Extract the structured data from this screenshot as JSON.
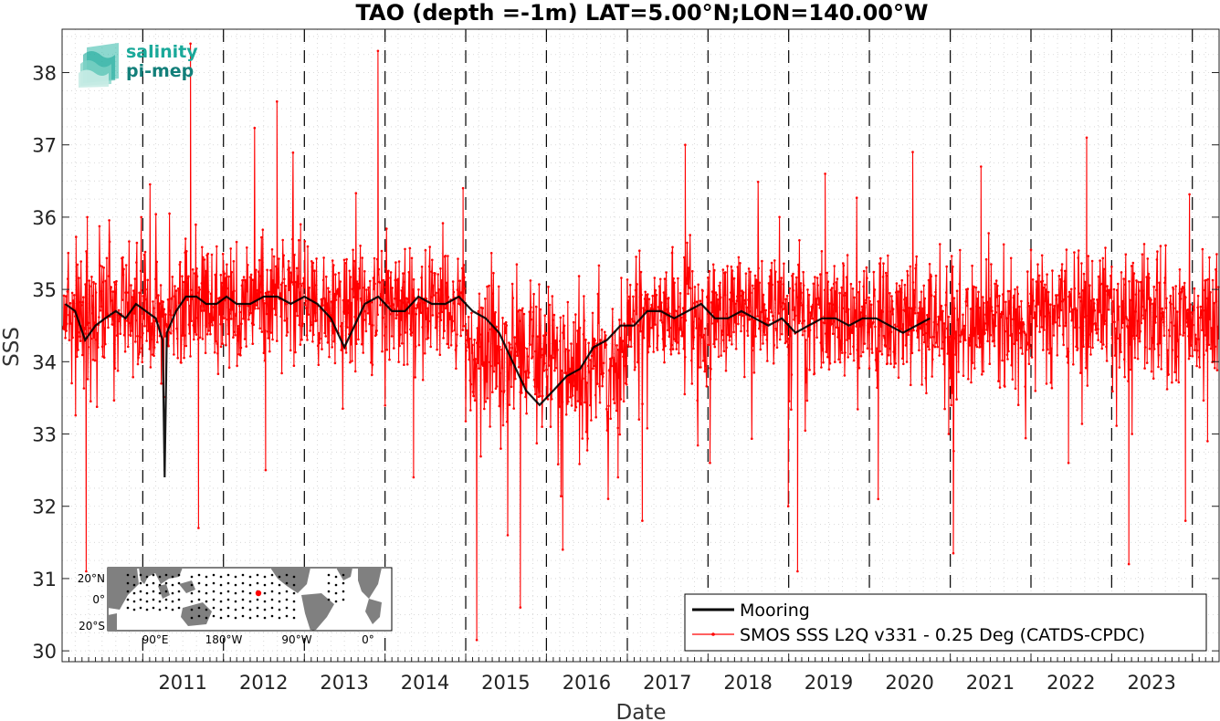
{
  "logo": {
    "line1": "salinity",
    "line2": "pi-mep",
    "color1": "#1aa99a",
    "color2": "#137f7a"
  },
  "colors": {
    "mooring": "#000000",
    "smos": "#ff0000",
    "year_line": "#000000",
    "grid": "#cccccc",
    "map_land": "#808080",
    "map_ocean": "#ffffff",
    "station_highlight": "#ff0000"
  },
  "chart_data": {
    "type": "line",
    "title": "TAO (depth =-1m) LAT=5.00°N;LON=140.00°W",
    "xlabel": "Date",
    "ylabel": "SSS",
    "xlim": [
      "2010-01-01",
      "2024-05-01"
    ],
    "ylim": [
      29.85,
      38.6
    ],
    "yticks": [
      30,
      31,
      32,
      33,
      34,
      35,
      36,
      37,
      38
    ],
    "xticks": [
      "2011",
      "2012",
      "2013",
      "2014",
      "2015",
      "2016",
      "2017",
      "2018",
      "2019",
      "2020",
      "2021",
      "2022",
      "2023"
    ],
    "year_lines": [
      "2011-01-01",
      "2012-01-01",
      "2013-01-01",
      "2014-01-01",
      "2015-01-01",
      "2016-01-01",
      "2017-01-01",
      "2018-01-01",
      "2019-01-01",
      "2020-01-01",
      "2021-01-01",
      "2022-01-01",
      "2023-01-01",
      "2024-01-01"
    ],
    "grid": "dotted",
    "legend_position": "bottom-right",
    "series": [
      {
        "name": "Mooring",
        "style": "line",
        "points": [
          [
            "2010-01-15",
            34.8
          ],
          [
            "2010-03-01",
            34.7
          ],
          [
            "2010-04-15",
            34.3
          ],
          [
            "2010-06-01",
            34.5
          ],
          [
            "2010-07-15",
            34.6
          ],
          [
            "2010-09-01",
            34.7
          ],
          [
            "2010-10-15",
            34.6
          ],
          [
            "2010-12-01",
            34.8
          ],
          [
            "2011-01-15",
            34.7
          ],
          [
            "2011-03-01",
            34.6
          ],
          [
            "2011-04-01",
            34.3
          ],
          [
            "2011-04-10",
            32.4
          ],
          [
            "2011-04-20",
            34.4
          ],
          [
            "2011-06-01",
            34.7
          ],
          [
            "2011-07-15",
            34.9
          ],
          [
            "2011-09-01",
            34.9
          ],
          [
            "2011-10-15",
            34.8
          ],
          [
            "2011-12-01",
            34.8
          ],
          [
            "2012-01-15",
            34.9
          ],
          [
            "2012-03-01",
            34.8
          ],
          [
            "2012-05-01",
            34.8
          ],
          [
            "2012-07-01",
            34.9
          ],
          [
            "2012-09-01",
            34.9
          ],
          [
            "2012-11-01",
            34.8
          ],
          [
            "2013-01-01",
            34.9
          ],
          [
            "2013-03-01",
            34.8
          ],
          [
            "2013-05-01",
            34.6
          ],
          [
            "2013-07-01",
            34.2
          ],
          [
            "2013-08-01",
            34.4
          ],
          [
            "2013-10-01",
            34.8
          ],
          [
            "2013-12-01",
            34.9
          ],
          [
            "2014-02-01",
            34.7
          ],
          [
            "2014-04-01",
            34.7
          ],
          [
            "2014-06-01",
            34.9
          ],
          [
            "2014-08-01",
            34.8
          ],
          [
            "2014-10-01",
            34.8
          ],
          [
            "2014-12-01",
            34.9
          ],
          [
            "2015-02-01",
            34.7
          ],
          [
            "2015-04-01",
            34.6
          ],
          [
            "2015-06-01",
            34.4
          ],
          [
            "2015-08-01",
            34.0
          ],
          [
            "2015-10-01",
            33.6
          ],
          [
            "2015-12-01",
            33.4
          ],
          [
            "2016-02-01",
            33.6
          ],
          [
            "2016-04-01",
            33.8
          ],
          [
            "2016-06-01",
            33.9
          ],
          [
            "2016-08-01",
            34.2
          ],
          [
            "2016-10-01",
            34.3
          ],
          [
            "2016-12-01",
            34.5
          ],
          [
            "2017-02-01",
            34.5
          ],
          [
            "2017-04-01",
            34.7
          ],
          [
            "2017-06-01",
            34.7
          ],
          [
            "2017-08-01",
            34.6
          ],
          [
            "2017-10-01",
            34.7
          ],
          [
            "2017-12-01",
            34.8
          ],
          [
            "2018-02-01",
            34.6
          ],
          [
            "2018-04-01",
            34.6
          ],
          [
            "2018-06-01",
            34.7
          ],
          [
            "2018-08-01",
            34.6
          ],
          [
            "2018-10-01",
            34.5
          ],
          [
            "2018-12-01",
            34.6
          ],
          [
            "2019-02-01",
            34.4
          ],
          [
            "2019-04-01",
            34.5
          ],
          [
            "2019-06-01",
            34.6
          ],
          [
            "2019-08-01",
            34.6
          ],
          [
            "2019-10-01",
            34.5
          ],
          [
            "2019-12-01",
            34.6
          ],
          [
            "2020-02-01",
            34.6
          ],
          [
            "2020-04-01",
            34.5
          ],
          [
            "2020-06-01",
            34.4
          ],
          [
            "2020-08-01",
            34.5
          ],
          [
            "2020-10-01",
            34.6
          ]
        ]
      },
      {
        "name": "SMOS SSS L2Q v331 - 0.25 Deg (CATDS-CPDC)",
        "style": "line-with-dots",
        "segments": [
          {
            "start": "2010-01-05",
            "end": "2010-12-31",
            "mean": 34.65,
            "sd": 0.55,
            "seed": 11
          },
          {
            "start": "2011-01-01",
            "end": "2011-12-31",
            "mean": 34.7,
            "sd": 0.55,
            "seed": 12
          },
          {
            "start": "2012-01-01",
            "end": "2012-12-31",
            "mean": 34.85,
            "sd": 0.5,
            "seed": 13
          },
          {
            "start": "2013-01-01",
            "end": "2013-12-31",
            "mean": 34.75,
            "sd": 0.5,
            "seed": 14
          },
          {
            "start": "2014-01-01",
            "end": "2014-12-31",
            "mean": 34.8,
            "sd": 0.5,
            "seed": 15
          },
          {
            "start": "2015-01-01",
            "end": "2015-12-31",
            "mean": 34.1,
            "sd": 0.6,
            "seed": 16
          },
          {
            "start": "2016-01-01",
            "end": "2016-12-31",
            "mean": 34.0,
            "sd": 0.6,
            "seed": 17
          },
          {
            "start": "2017-01-01",
            "end": "2017-12-31",
            "mean": 34.55,
            "sd": 0.5,
            "seed": 18
          },
          {
            "start": "2018-01-01",
            "end": "2018-12-31",
            "mean": 34.7,
            "sd": 0.5,
            "seed": 19
          },
          {
            "start": "2019-01-01",
            "end": "2019-12-31",
            "mean": 34.6,
            "sd": 0.55,
            "seed": 20
          },
          {
            "start": "2020-01-01",
            "end": "2020-12-31",
            "mean": 34.55,
            "sd": 0.55,
            "seed": 21
          },
          {
            "start": "2021-01-01",
            "end": "2021-12-31",
            "mean": 34.55,
            "sd": 0.55,
            "seed": 22
          },
          {
            "start": "2022-01-01",
            "end": "2022-12-31",
            "mean": 34.7,
            "sd": 0.55,
            "seed": 23
          },
          {
            "start": "2023-01-01",
            "end": "2024-04-30",
            "mean": 34.6,
            "sd": 0.55,
            "seed": 24
          }
        ],
        "notable_points": [
          [
            "2010-04-20",
            31.1
          ],
          [
            "2010-04-25",
            36.0
          ],
          [
            "2010-12-25",
            36.0
          ],
          [
            "2011-08-05",
            38.4
          ],
          [
            "2011-09-10",
            31.7
          ],
          [
            "2011-12-20",
            35.2
          ],
          [
            "2012-07-10",
            32.5
          ],
          [
            "2012-08-30",
            37.6
          ],
          [
            "2012-12-15",
            35.9
          ],
          [
            "2013-11-30",
            38.3
          ],
          [
            "2014-05-10",
            32.4
          ],
          [
            "2014-12-20",
            36.4
          ],
          [
            "2015-02-20",
            30.15
          ],
          [
            "2015-07-10",
            31.6
          ],
          [
            "2015-09-05",
            30.6
          ],
          [
            "2016-01-20",
            33.1
          ],
          [
            "2016-03-15",
            31.4
          ],
          [
            "2016-11-20",
            32.4
          ],
          [
            "2017-03-10",
            31.8
          ],
          [
            "2017-09-20",
            37.0
          ],
          [
            "2018-01-10",
            32.6
          ],
          [
            "2018-12-30",
            32.0
          ],
          [
            "2019-02-10",
            31.1
          ],
          [
            "2019-06-15",
            36.6
          ],
          [
            "2020-02-10",
            32.1
          ],
          [
            "2020-07-15",
            36.9
          ],
          [
            "2020-12-25",
            33.0
          ],
          [
            "2021-01-15",
            31.35
          ],
          [
            "2021-05-20",
            36.7
          ],
          [
            "2022-06-20",
            32.6
          ],
          [
            "2022-09-10",
            37.1
          ],
          [
            "2022-11-01",
            34.3
          ],
          [
            "2023-03-20",
            31.2
          ],
          [
            "2023-08-10",
            35.6
          ],
          [
            "2023-12-01",
            31.8
          ],
          [
            "2024-03-10",
            32.9
          ]
        ]
      }
    ]
  },
  "map_inset": {
    "lat_labels": [
      "20°N",
      "0°",
      "20°S"
    ],
    "lon_labels": [
      "90°E",
      "180°W",
      "90°W",
      "0°"
    ]
  }
}
